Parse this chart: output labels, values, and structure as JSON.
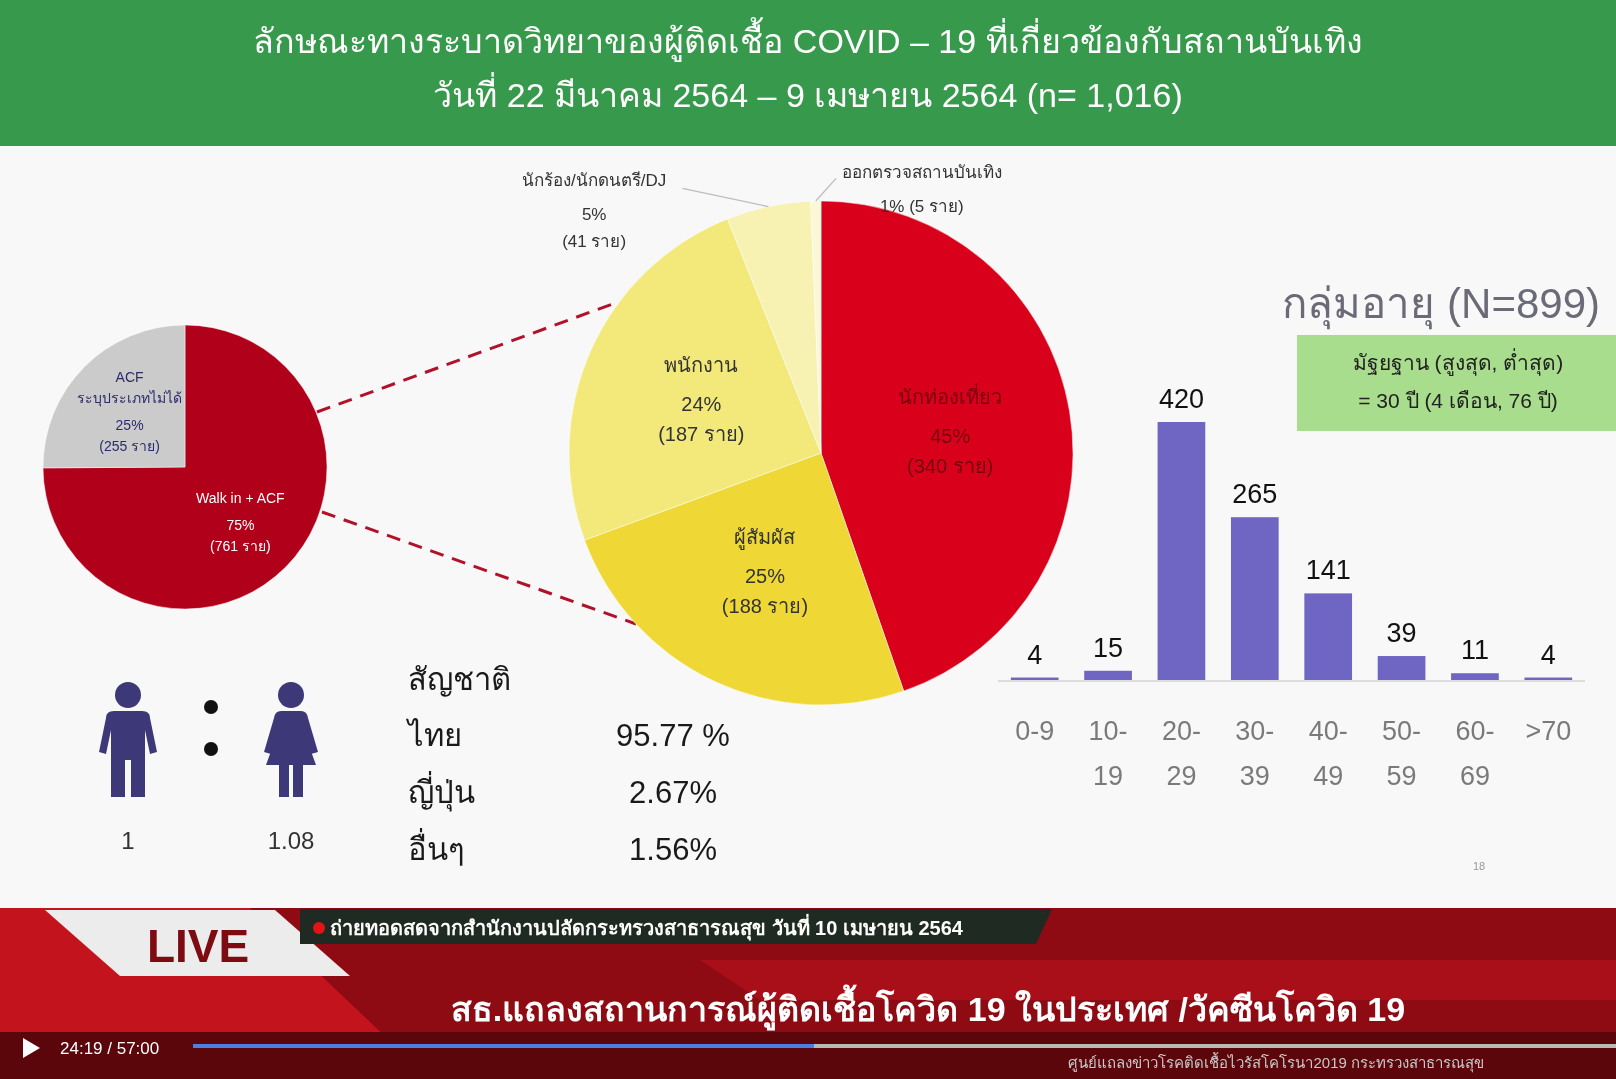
{
  "chart_data": [
    {
      "type": "other",
      "title": "ลักษณะทางระบาดวิทยาของผู้ติดเชื้อ COVID – 19 ที่เกี่ยวข้องกับสถานบันเทิง",
      "subtitle": "วันที่ 22 มีนาคม 2564 – 9 เมษายน 2564 (n= 1,016)"
    },
    {
      "type": "pie",
      "categories": [
        "Walk in + ACF",
        "ACF\nระบุประเภทไม่ได้"
      ],
      "values": [
        761,
        255
      ],
      "colors": [
        "#b0001a",
        "#cbcbcb"
      ],
      "value_labels": [
        "75%\n(761 ราย)",
        "25%\n(255 ราย)"
      ]
    },
    {
      "type": "pie",
      "categories": [
        "นักท่องเที่ยว",
        "ผู้สัมผัส",
        "พนักงาน",
        "นักร้อง/นักดนตรี/DJ",
        "ออกตรวจสถานบันเทิง"
      ],
      "values": [
        340,
        188,
        187,
        41,
        5
      ],
      "colors": [
        "#d9001b",
        "#efd835",
        "#f2e97a",
        "#f7f1b2",
        "#fbf8d8"
      ],
      "value_labels": [
        "45%\n(340 ราย)",
        "25%\n(188 ราย)",
        "24%\n(187 ราย)",
        "5%\n(41 ราย)",
        "1% (5 ราย)"
      ]
    },
    {
      "type": "bar",
      "title": "กลุ่มอายุ (N=899)",
      "categories": [
        "0-9",
        "10-\n19",
        "20-\n29",
        "30-\n39",
        "40-\n49",
        "50-\n59",
        "60-\n69",
        ">70"
      ],
      "values": [
        4,
        15,
        420,
        265,
        141,
        39,
        11,
        4
      ],
      "color": "#6f65c2",
      "data_labels": true,
      "annotations": [
        "มัฐยฐาน (สูงสุด, ต่ำสุด)\n= 30 ปี (4 เดือน, 76 ปี)",
        "18"
      ]
    },
    {
      "type": "other",
      "annotations": [
        "1",
        "1.08"
      ]
    },
    {
      "type": "other",
      "title": "สัญชาติ",
      "categories": [
        "ไทย",
        "ญี่ปุ่น",
        "อื่นๆ"
      ],
      "value_labels": [
        "95.77 %",
        "2.67%",
        "1.56%"
      ]
    },
    {
      "type": "other",
      "annotations": [
        "LIVE",
        "ถ่ายทอดสดจากสำนักงานปลัดกระทรวงสาธารณสุข วันที่ 10 เมษายน 2564",
        "สธ.แถลงสถานการณ์ผู้ติดเชื้อโควิด 19 ในประเทศ /วัคซีนโควิด 19",
        "24:19 / 57:00",
        "ศูนย์แถลงข่าวโรคติดเชื้อไวรัสโคโรนา2019 กระทรวงสาธารณสุข"
      ]
    }
  ]
}
